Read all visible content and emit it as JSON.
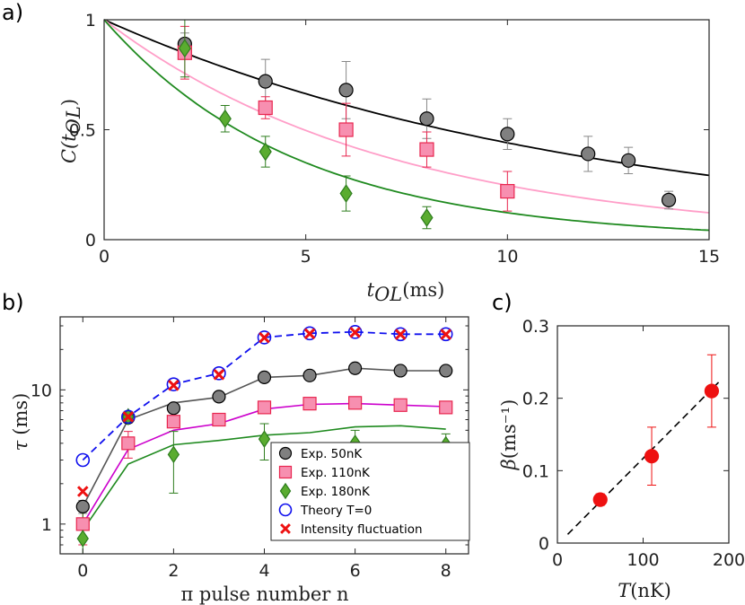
{
  "chart_data": [
    {
      "panel": "a)",
      "type": "scatter",
      "xlabel_var": "t",
      "xlabel_sub": "OL",
      "xlabel_unit": "(ms)",
      "ylabel_var": "C(t",
      "ylabel_sub": "OL",
      "ylabel_end": ")",
      "xlim": [
        0,
        15
      ],
      "ylim": [
        0,
        1
      ],
      "xticks": [
        0,
        5,
        10,
        15
      ],
      "yticks": [
        0,
        0.5,
        1
      ],
      "xtick_labels": [
        "0",
        "5",
        "10",
        "15"
      ],
      "ytick_labels": [
        "0",
        "0.5",
        "1"
      ],
      "fits": [
        {
          "name": "50nK fit",
          "color": "#000000",
          "rate": 0.082
        },
        {
          "name": "110nK fit",
          "color": "#ff9ec8",
          "rate": 0.14
        },
        {
          "name": "180nK fit",
          "color": "#1f8a1f",
          "rate": 0.21
        }
      ],
      "series": [
        {
          "name": "50nK",
          "marker": "circle",
          "fill": "#808080",
          "stroke": "#000000",
          "x": [
            2,
            4,
            6,
            8,
            10,
            12,
            13,
            14
          ],
          "y": [
            0.89,
            0.72,
            0.68,
            0.55,
            0.48,
            0.39,
            0.36,
            0.18
          ],
          "err": [
            0.05,
            0.1,
            0.13,
            0.09,
            0.07,
            0.08,
            0.06,
            0.04
          ]
        },
        {
          "name": "110nK",
          "marker": "square",
          "fill": "#f78fb0",
          "stroke": "#e8264f",
          "x": [
            2,
            4,
            6,
            8,
            10
          ],
          "y": [
            0.85,
            0.6,
            0.5,
            0.41,
            0.22
          ],
          "err": [
            0.12,
            0.05,
            0.12,
            0.08,
            0.09
          ]
        },
        {
          "name": "180nK",
          "marker": "diamond",
          "fill": "#5aac30",
          "stroke": "#2e7d1e",
          "x": [
            2,
            3,
            4,
            6,
            8
          ],
          "y": [
            0.87,
            0.55,
            0.4,
            0.21,
            0.1
          ],
          "err": [
            0.13,
            0.06,
            0.07,
            0.08,
            0.05
          ]
        }
      ]
    },
    {
      "panel": "b)",
      "type": "line",
      "xlabel": "π pulse number n",
      "ylabel_var": "τ",
      "ylabel_unit": "(ms)",
      "yscale": "log",
      "xlim": [
        -0.5,
        8.5
      ],
      "ylim": [
        0.6,
        35
      ],
      "xticks": [
        0,
        2,
        4,
        6,
        8
      ],
      "yticks": [
        1,
        10
      ],
      "xtick_labels": [
        "0",
        "2",
        "4",
        "6",
        "8"
      ],
      "ytick_labels": [
        "1",
        "10"
      ],
      "x": [
        0,
        1,
        2,
        3,
        4,
        5,
        6,
        7,
        8
      ],
      "series": [
        {
          "name": "Exp. 50nK",
          "marker": "circle",
          "fill": "#808080",
          "stroke": "#000000",
          "line": "#555555",
          "y": [
            1.35,
            6.2,
            7.3,
            8.9,
            12.4,
            12.8,
            14.5,
            13.9,
            13.9
          ],
          "line_y": [
            1.35,
            6.0,
            8.0,
            8.8,
            12.4,
            12.8,
            14.5,
            13.9,
            13.9
          ],
          "err": [
            0.15,
            0.5,
            0.6,
            0.6,
            0.6,
            0.6,
            0.6,
            0.6,
            0.6
          ]
        },
        {
          "name": "Exp. 110nK",
          "marker": "square",
          "fill": "#f78fb0",
          "stroke": "#e8264f",
          "line": "#cc00cc",
          "y": [
            1.0,
            4.0,
            5.8,
            6.0,
            7.4,
            7.9,
            8.0,
            7.7,
            7.4
          ],
          "line_y": [
            1.0,
            3.6,
            5.0,
            5.6,
            7.2,
            7.8,
            7.9,
            7.7,
            7.5
          ],
          "err": [
            0.3,
            0.9,
            0.5,
            0.4,
            0.4,
            0.4,
            0.5,
            0.4,
            0.4
          ]
        },
        {
          "name": "Exp. 180nK",
          "marker": "diamond",
          "fill": "#5aac30",
          "stroke": "#2e7d1e",
          "line": "#1f8a1f",
          "y": [
            0.78,
            6.3,
            3.3,
            null,
            4.3,
            null,
            4.0,
            null,
            3.9
          ],
          "line_y": [
            0.9,
            2.8,
            3.9,
            4.2,
            4.6,
            4.8,
            5.3,
            5.4,
            5.1
          ],
          "err": [
            0.5,
            0.6,
            1.6,
            null,
            1.3,
            null,
            1.0,
            null,
            0.8
          ]
        },
        {
          "name": "Theory T=0",
          "marker": "open-circle",
          "fill": "none",
          "stroke": "#1010ee",
          "line": "#1010ee",
          "dashed": true,
          "y": [
            3.0,
            6.3,
            11.0,
            13.3,
            24.6,
            26.4,
            27.0,
            26.0,
            26.0
          ]
        },
        {
          "name": "Intensity fluctuation",
          "marker": "cross",
          "stroke": "#ee1111",
          "y": [
            1.75,
            6.3,
            10.8,
            13.0,
            24.5,
            26.2,
            26.8,
            25.9,
            25.9
          ]
        }
      ],
      "legend": {
        "placement": "bottom-right",
        "entries": [
          "Exp. 50nK",
          "Exp. 110nK",
          "Exp. 180nK",
          "Theory T=0",
          "Intensity fluctuation"
        ]
      }
    },
    {
      "panel": "c)",
      "type": "scatter",
      "xlabel_var": "T",
      "xlabel_unit": "(nK)",
      "ylabel_var": "β",
      "ylabel_unit": "(ms⁻¹)",
      "xlim": [
        0,
        200
      ],
      "ylim": [
        0,
        0.3
      ],
      "xticks": [
        0,
        100,
        200
      ],
      "yticks": [
        0,
        0.1,
        0.2,
        0.3
      ],
      "xtick_labels": [
        "0",
        "100",
        "200"
      ],
      "ytick_labels": [
        "0",
        "0.1",
        "0.2",
        "0.3"
      ],
      "points": {
        "x": [
          50,
          110,
          180
        ],
        "y": [
          0.06,
          0.12,
          0.21
        ],
        "err": [
          0.008,
          0.04,
          0.05
        ],
        "color": "#ee1111"
      },
      "fit_line": {
        "x": [
          12,
          188
        ],
        "y": [
          0.012,
          0.222
        ],
        "style": "dashed",
        "color": "#000000"
      }
    }
  ]
}
